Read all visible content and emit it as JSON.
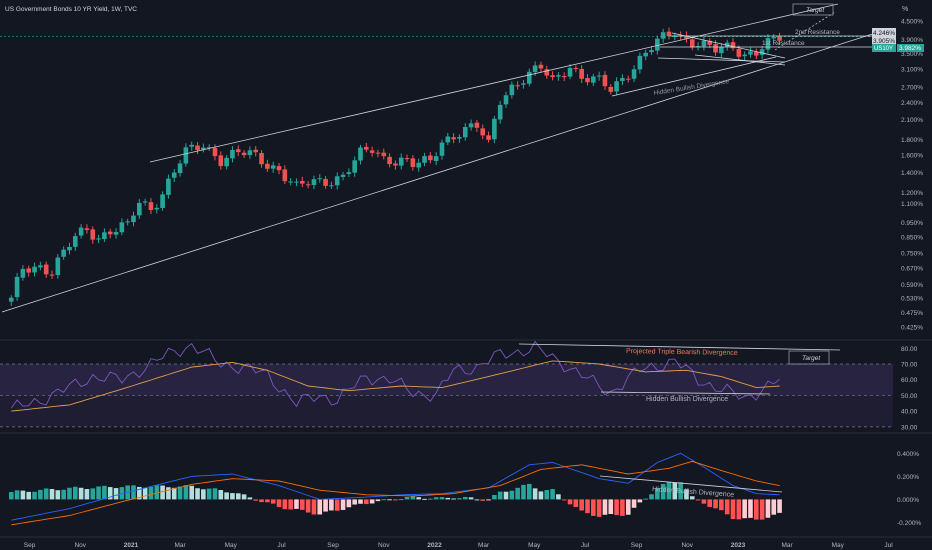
{
  "header": {
    "title": "US Government Bonds 10 YR Yield, 1W, TVC",
    "percent_symbol": "%"
  },
  "colors": {
    "background": "#131722",
    "up": "#26a69a",
    "down": "#ef5350",
    "rsi_line": "#7e57c2",
    "rsi_ma": "#e0a050",
    "macd_line": "#2962ff",
    "signal_line": "#ff6d00",
    "hist_up_strong": "#26a69a",
    "hist_up_weak": "#b2dfdb",
    "hist_down_strong": "#ff5252",
    "hist_down_weak": "#ffcdd2",
    "trendline": "#d1d4dc",
    "current_price": "#26a69a",
    "grid": "#2a2e39"
  },
  "chart_data": [
    {
      "type": "candlestick",
      "name": "price-pane",
      "title": "US Government Bonds 10 YR Yield, 1W, TVC",
      "scale": "log",
      "ylim": [
        0.39,
        4.6
      ],
      "y_ticks": [
        "0.425%",
        "0.475%",
        "0.530%",
        "0.590%",
        "0.670%",
        "0.750%",
        "0.850%",
        "0.950%",
        "1.100%",
        "1.200%",
        "1.400%",
        "1.600%",
        "1.800%",
        "2.100%",
        "2.400%",
        "2.700%",
        "3.100%",
        "3.500%",
        "3.900%",
        "4.500%"
      ],
      "y_tick_values": [
        0.425,
        0.475,
        0.53,
        0.59,
        0.67,
        0.75,
        0.85,
        0.95,
        1.1,
        1.2,
        1.4,
        1.6,
        1.8,
        2.1,
        2.4,
        2.7,
        3.1,
        3.5,
        3.9,
        4.5
      ],
      "x_ticks": [
        "Sep",
        "Nov",
        "2021",
        "Mar",
        "May",
        "Jul",
        "Sep",
        "Nov",
        "2022",
        "Mar",
        "May",
        "Jul",
        "Sep",
        "Nov",
        "2023",
        "Mar",
        "May",
        "Jul"
      ],
      "series": [
        {
          "name": "weekly-close",
          "anchors": [
            [
              "2020-08-10",
              0.52
            ],
            [
              "2020-08-24",
              0.66
            ],
            [
              "2020-09-14",
              0.68
            ],
            [
              "2020-09-28",
              0.66
            ],
            [
              "2020-10-12",
              0.75
            ],
            [
              "2020-10-26",
              0.84
            ],
            [
              "2020-11-09",
              0.9
            ],
            [
              "2020-11-23",
              0.85
            ],
            [
              "2020-12-07",
              0.9
            ],
            [
              "2020-12-28",
              0.92
            ],
            [
              "2021-01-11",
              1.1
            ],
            [
              "2021-01-25",
              1.06
            ],
            [
              "2021-02-08",
              1.2
            ],
            [
              "2021-02-22",
              1.42
            ],
            [
              "2021-03-08",
              1.62
            ],
            [
              "2021-03-29",
              1.72
            ],
            [
              "2021-04-19",
              1.56
            ],
            [
              "2021-05-10",
              1.63
            ],
            [
              "2021-05-31",
              1.57
            ],
            [
              "2021-06-14",
              1.49
            ],
            [
              "2021-06-28",
              1.44
            ],
            [
              "2021-07-19",
              1.24
            ],
            [
              "2021-08-02",
              1.28
            ],
            [
              "2021-08-23",
              1.31
            ],
            [
              "2021-09-13",
              1.37
            ],
            [
              "2021-10-04",
              1.6
            ],
            [
              "2021-10-18",
              1.66
            ],
            [
              "2021-11-01",
              1.56
            ],
            [
              "2021-11-22",
              1.55
            ],
            [
              "2021-12-06",
              1.48
            ],
            [
              "2021-12-27",
              1.51
            ],
            [
              "2022-01-10",
              1.78
            ],
            [
              "2022-01-31",
              1.92
            ],
            [
              "2022-02-21",
              1.98
            ],
            [
              "2022-03-07",
              1.72
            ],
            [
              "2022-03-21",
              2.48
            ],
            [
              "2022-04-04",
              2.72
            ],
            [
              "2022-04-25",
              2.94
            ],
            [
              "2022-05-09",
              3.12
            ],
            [
              "2022-05-23",
              2.84
            ],
            [
              "2022-06-13",
              3.22
            ],
            [
              "2022-06-27",
              2.88
            ],
            [
              "2022-07-18",
              2.8
            ],
            [
              "2022-08-01",
              2.68
            ],
            [
              "2022-08-22",
              3.03
            ],
            [
              "2022-09-12",
              3.45
            ],
            [
              "2022-09-26",
              3.81
            ],
            [
              "2022-10-17",
              4.21
            ],
            [
              "2022-10-24",
              4.02
            ],
            [
              "2022-11-07",
              3.82
            ],
            [
              "2022-11-21",
              3.68
            ],
            [
              "2022-12-05",
              3.57
            ],
            [
              "2022-12-26",
              3.75
            ],
            [
              "2023-01-09",
              3.48
            ],
            [
              "2023-01-23",
              3.52
            ],
            [
              "2023-02-06",
              3.73
            ],
            [
              "2023-02-20",
              3.95
            ]
          ]
        }
      ],
      "current_value": 3.982,
      "current_label": "3.982%",
      "current_symbol": "US10Y",
      "price_labels": [
        "4.246%",
        "3.905%"
      ],
      "annotations": [
        "2nd Resistance",
        "1st Resistance",
        "Hidden Bullish Divergence",
        "Target"
      ]
    },
    {
      "type": "line",
      "name": "rsi-pane",
      "ylim": [
        28,
        84
      ],
      "y_ticks": [
        "80.00",
        "70.00",
        "60.00",
        "50.00",
        "40.00",
        "30.00"
      ],
      "y_tick_values": [
        80,
        70,
        60,
        50,
        40,
        30
      ],
      "bands": [
        70,
        50,
        30
      ],
      "series": [
        {
          "name": "rsi",
          "anchors": [
            [
              "2020-08-10",
              41
            ],
            [
              "2020-09-14",
              47
            ],
            [
              "2020-10-19",
              55
            ],
            [
              "2020-11-16",
              62
            ],
            [
              "2020-12-21",
              60
            ],
            [
              "2021-01-18",
              68
            ],
            [
              "2021-02-22",
              78
            ],
            [
              "2021-03-15",
              82
            ],
            [
              "2021-04-19",
              70
            ],
            [
              "2021-05-17",
              68
            ],
            [
              "2021-06-14",
              63
            ],
            [
              "2021-07-19",
              45
            ],
            [
              "2021-08-16",
              50
            ],
            [
              "2021-09-06",
              47
            ],
            [
              "2021-10-11",
              62
            ],
            [
              "2021-11-08",
              60
            ],
            [
              "2021-12-06",
              52
            ],
            [
              "2022-01-03",
              50
            ],
            [
              "2022-01-24",
              66
            ],
            [
              "2022-02-21",
              68
            ],
            [
              "2022-03-21",
              76
            ],
            [
              "2022-05-02",
              80
            ],
            [
              "2022-06-06",
              70
            ],
            [
              "2022-07-11",
              58
            ],
            [
              "2022-08-01",
              52
            ],
            [
              "2022-09-05",
              66
            ],
            [
              "2022-10-17",
              72
            ],
            [
              "2022-11-14",
              60
            ],
            [
              "2022-12-12",
              54
            ],
            [
              "2023-01-09",
              48
            ],
            [
              "2023-02-20",
              60
            ]
          ]
        },
        {
          "name": "rsi-ma",
          "anchors": [
            [
              "2020-08-10",
              40
            ],
            [
              "2020-10-19",
              44
            ],
            [
              "2020-12-21",
              54
            ],
            [
              "2021-03-15",
              68
            ],
            [
              "2021-05-03",
              71
            ],
            [
              "2021-06-14",
              66
            ],
            [
              "2021-08-02",
              56
            ],
            [
              "2021-09-20",
              53
            ],
            [
              "2021-11-22",
              56
            ],
            [
              "2022-01-10",
              55
            ],
            [
              "2022-03-07",
              62
            ],
            [
              "2022-05-23",
              72
            ],
            [
              "2022-07-18",
              70
            ],
            [
              "2022-09-12",
              65
            ],
            [
              "2022-10-31",
              66
            ],
            [
              "2022-12-12",
              62
            ],
            [
              "2023-01-23",
              55
            ],
            [
              "2023-02-20",
              56
            ]
          ]
        }
      ],
      "annotations": [
        "Projected Triple Bearish Divergence",
        "Hidden Bullish Divergence",
        "Target"
      ]
    },
    {
      "type": "histogram",
      "name": "macd-pane",
      "ylim": [
        -0.3,
        0.55
      ],
      "y_ticks": [
        "0.400%",
        "0.200%",
        "0.000%",
        "-0.200%"
      ],
      "y_tick_values": [
        0.4,
        0.2,
        0.0,
        -0.2
      ],
      "series": [
        {
          "name": "macd",
          "anchors": [
            [
              "2020-08-10",
              -0.18
            ],
            [
              "2020-10-19",
              -0.08
            ],
            [
              "2020-12-21",
              0.05
            ],
            [
              "2021-03-15",
              0.2
            ],
            [
              "2021-05-03",
              0.22
            ],
            [
              "2021-06-28",
              0.12
            ],
            [
              "2021-08-16",
              0.0
            ],
            [
              "2021-10-11",
              0.02
            ],
            [
              "2021-11-22",
              0.04
            ],
            [
              "2022-01-10",
              0.05
            ],
            [
              "2022-03-07",
              0.1
            ],
            [
              "2022-04-25",
              0.3
            ],
            [
              "2022-05-23",
              0.32
            ],
            [
              "2022-07-18",
              0.18
            ],
            [
              "2022-08-22",
              0.14
            ],
            [
              "2022-09-26",
              0.32
            ],
            [
              "2022-10-24",
              0.4
            ],
            [
              "2022-11-21",
              0.28
            ],
            [
              "2022-12-26",
              0.12
            ],
            [
              "2023-01-23",
              0.05
            ],
            [
              "2023-02-20",
              0.04
            ]
          ]
        },
        {
          "name": "signal",
          "anchors": [
            [
              "2020-08-10",
              -0.22
            ],
            [
              "2020-10-19",
              -0.14
            ],
            [
              "2020-12-21",
              -0.02
            ],
            [
              "2021-03-15",
              0.13
            ],
            [
              "2021-05-03",
              0.18
            ],
            [
              "2021-06-28",
              0.16
            ],
            [
              "2021-08-16",
              0.08
            ],
            [
              "2021-10-11",
              0.04
            ],
            [
              "2021-12-06",
              0.03
            ],
            [
              "2022-01-24",
              0.05
            ],
            [
              "2022-03-21",
              0.12
            ],
            [
              "2022-05-09",
              0.26
            ],
            [
              "2022-06-27",
              0.3
            ],
            [
              "2022-08-22",
              0.22
            ],
            [
              "2022-10-10",
              0.27
            ],
            [
              "2022-11-07",
              0.33
            ],
            [
              "2022-12-12",
              0.25
            ],
            [
              "2023-01-23",
              0.16
            ],
            [
              "2023-02-20",
              0.12
            ]
          ]
        }
      ],
      "annotations": [
        "Hidden Bullish Divergence"
      ]
    }
  ]
}
